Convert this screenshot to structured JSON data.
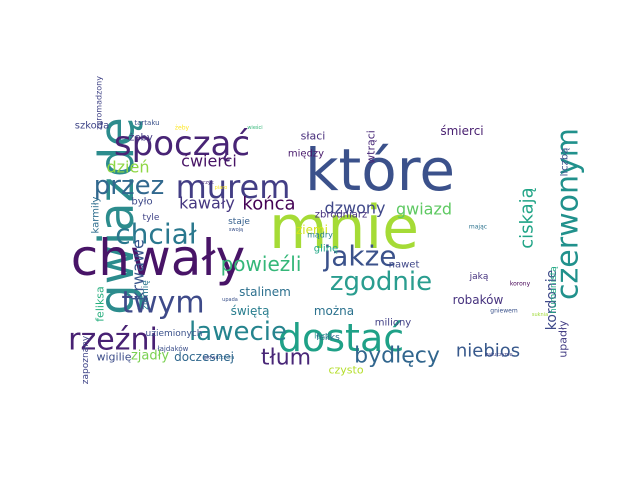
{
  "words": [
    {
      "text": "które",
      "color": "#3b518b"
    },
    {
      "text": "mnie",
      "color": "#a5db36"
    },
    {
      "text": "gwiazdę",
      "color": "#2c8c8d"
    },
    {
      "text": "chwały",
      "color": "#481467"
    },
    {
      "text": "dostać",
      "color": "#1fa187"
    },
    {
      "text": "spocząć",
      "color": "#482475"
    },
    {
      "text": "murem",
      "color": "#433e85"
    },
    {
      "text": "chciał",
      "color": "#2a788e"
    },
    {
      "text": "jakże",
      "color": "#3b528b"
    },
    {
      "text": "czerwonym",
      "color": "#21918c"
    },
    {
      "text": "zgodnie",
      "color": "#2a9d8f"
    },
    {
      "text": "twym",
      "color": "#3e4a89"
    },
    {
      "text": "rzeźni",
      "color": "#482173"
    },
    {
      "text": "lawecie",
      "color": "#25848e"
    },
    {
      "text": "przez",
      "color": "#31688e"
    },
    {
      "text": "powieźli",
      "color": "#35b779"
    },
    {
      "text": "tłum",
      "color": "#482677"
    },
    {
      "text": "bydlęcy",
      "color": "#31668e"
    },
    {
      "text": "niebios",
      "color": "#38598c"
    },
    {
      "text": "dzień",
      "color": "#8fd744"
    },
    {
      "text": "ćwierci",
      "color": "#471365"
    },
    {
      "text": "dzwony",
      "color": "#3f4889"
    },
    {
      "text": "gwiazd",
      "color": "#5ec962"
    },
    {
      "text": "kawały",
      "color": "#453781"
    },
    {
      "text": "końca",
      "color": "#440154"
    },
    {
      "text": "ciskają",
      "color": "#20a486"
    },
    {
      "text": "kordonie",
      "color": "#3e4989"
    },
    {
      "text": "krwawe",
      "color": "#39568c"
    },
    {
      "text": "stalinem",
      "color": "#2d708e"
    },
    {
      "text": "świętą",
      "color": "#287d8e"
    },
    {
      "text": "można",
      "color": "#2c728e"
    },
    {
      "text": "robaków",
      "color": "#46327e"
    },
    {
      "text": "upadły",
      "color": "#433d84"
    },
    {
      "text": "zjadły",
      "color": "#7ad151"
    },
    {
      "text": "doczesnej",
      "color": "#31688e"
    },
    {
      "text": "wigilię",
      "color": "#3d4d8a"
    },
    {
      "text": "czysto",
      "color": "#b5de2b"
    },
    {
      "text": "śmierci",
      "color": "#481f70"
    },
    {
      "text": "wtrąci",
      "color": "#482878"
    },
    {
      "text": "słaci",
      "color": "#472d7b"
    },
    {
      "text": "szkoda",
      "color": "#404688"
    },
    {
      "text": "żeby",
      "color": "#443a83"
    },
    {
      "text": "między",
      "color": "#481a6c"
    },
    {
      "text": "liczbą",
      "color": "#3b528b"
    },
    {
      "text": "zbrodniarz",
      "color": "#46307e"
    },
    {
      "text": "ziemi",
      "color": "#d2e21b"
    },
    {
      "text": "było",
      "color": "#3e4989"
    },
    {
      "text": "tyle",
      "color": "#414487"
    },
    {
      "text": "staje",
      "color": "#355f8d"
    },
    {
      "text": "karmiły",
      "color": "#2e6e8e"
    },
    {
      "text": "feliksa",
      "color": "#29af7f"
    },
    {
      "text": "ziemię",
      "color": "#2a768e"
    },
    {
      "text": "uziemionych",
      "color": "#3b528b"
    },
    {
      "text": "mądry",
      "color": "#26828e"
    },
    {
      "text": "glinę",
      "color": "#22a785"
    },
    {
      "text": "nawet",
      "color": "#3f4788"
    },
    {
      "text": "jaką",
      "color": "#46337f"
    },
    {
      "text": "miliony",
      "color": "#424086"
    },
    {
      "text": "lecz",
      "color": "#1f9a8a"
    },
    {
      "text": "feliks",
      "color": "#2f6c8e"
    },
    {
      "text": "humanistą",
      "color": "#22a884"
    },
    {
      "text": "łajdaków",
      "color": "#3c4f8a"
    },
    {
      "text": "zapoznany",
      "color": "#404588"
    },
    {
      "text": "zgromadzony",
      "color": "#414487"
    },
    {
      "text": "tartaku",
      "color": "#3b528b"
    },
    {
      "text": "żeby",
      "color": "#fde725"
    },
    {
      "text": "wieści",
      "color": "#35b779"
    },
    {
      "text": "krzyk",
      "color": "#472c7a"
    },
    {
      "text": "piaro",
      "color": "#fde725"
    },
    {
      "text": "swoją",
      "color": "#3b528b"
    },
    {
      "text": "mając",
      "color": "#2c738e"
    },
    {
      "text": "korony",
      "color": "#440154"
    },
    {
      "text": "gniewem",
      "color": "#3b528b"
    },
    {
      "text": "zatuczyme",
      "color": "#414487"
    },
    {
      "text": "suknia",
      "color": "#a0da39"
    },
    {
      "text": "głowa",
      "color": "#3e4989"
    },
    {
      "text": "szczera",
      "color": "#31688e"
    },
    {
      "text": "upada",
      "color": "#3b528b"
    }
  ]
}
